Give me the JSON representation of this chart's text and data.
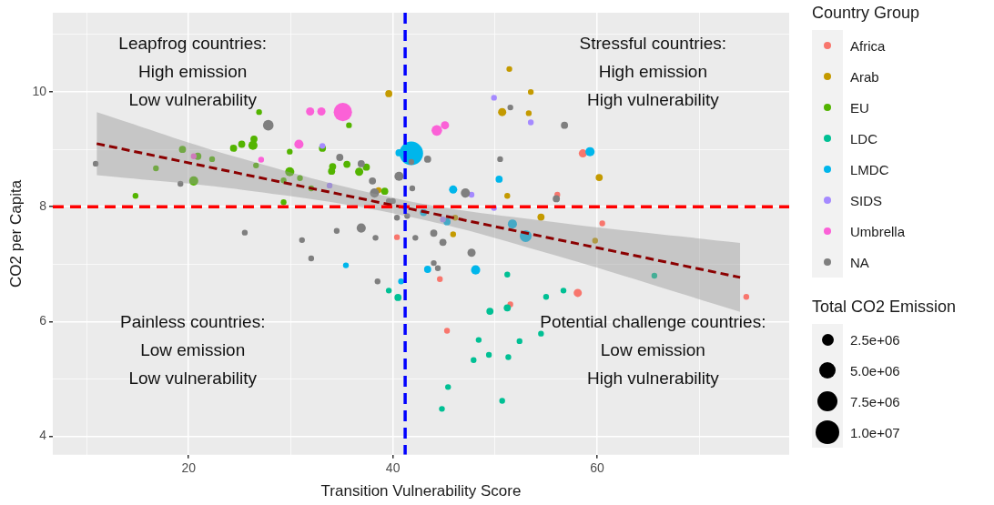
{
  "chart_data": {
    "type": "bubble",
    "xlabel": "Transition Vulnerability Score",
    "ylabel": "CO2 per Capita",
    "legend_title": "Country Group",
    "legend": "right",
    "grid": true,
    "xlim": [
      6.7,
      78.8
    ],
    "ylim": [
      3.68,
      11.38
    ],
    "xticks": [
      {
        "value": 10,
        "label": null
      },
      20,
      {
        "value": 30,
        "label": null
      },
      40,
      {
        "value": 50,
        "label": null
      },
      60,
      {
        "value": 70,
        "label": null
      }
    ],
    "yticks": [
      4,
      {
        "value": 5,
        "label": null
      },
      6,
      {
        "value": 7,
        "label": null
      },
      8,
      {
        "value": 9,
        "label": null
      },
      10,
      {
        "value": 11,
        "label": null
      }
    ],
    "size_legend": [
      {
        "value": 2500000,
        "label": "2.5e+06"
      },
      {
        "value": 5000000,
        "label": "5.0e+06"
      },
      {
        "value": 7500000,
        "label": "7.5e+06"
      },
      {
        "value": 10000000,
        "label": "1.0e+07"
      }
    ],
    "clabel": "Total CO2 Emission",
    "series": [
      {
        "type": "line",
        "color": "#8b0000",
        "line_style": "dashed",
        "x": [
          11,
          25,
          41,
          55,
          74
        ],
        "values": [
          9.1,
          8.58,
          7.99,
          7.47,
          6.77
        ],
        "lower": [
          8.55,
          8.3,
          7.85,
          7.2,
          6.17
        ],
        "upper": [
          9.65,
          8.85,
          8.12,
          7.75,
          7.37
        ]
      },
      {
        "name": "Africa",
        "color": "#f8766d",
        "x": [
          40.4,
          44.6,
          45.3,
          51.5,
          58.1,
          58.6,
          56.1,
          60.5,
          74.6
        ],
        "values": [
          7.47,
          6.74,
          5.84,
          6.3,
          6.5,
          8.93,
          8.21,
          7.71,
          6.43
        ],
        "sizes": [
          600000,
          600000,
          600000,
          600000,
          1200000,
          1200000,
          600000,
          600000,
          600000
        ]
      },
      {
        "name": "Arab",
        "color": "#c49a00",
        "x": [
          39.6,
          51.4,
          53.5,
          53.3,
          50.7,
          51.2,
          60.2,
          54.5,
          45.9,
          38.6,
          46.1,
          59.8
        ],
        "values": [
          9.97,
          10.4,
          10,
          9.63,
          9.65,
          8.19,
          8.51,
          7.82,
          7.52,
          8.29,
          7.81,
          7.41
        ],
        "sizes": [
          900000,
          600000,
          600000,
          600000,
          1200000,
          600000,
          900000,
          900000,
          600000,
          600000,
          600000,
          600000
        ]
      },
      {
        "name": "EU",
        "color": "#53b400",
        "x": [
          26.9,
          26.4,
          26.3,
          25.2,
          24.4,
          19.4,
          20.9,
          22.3,
          16.8,
          20.5,
          14.8,
          26.6,
          29.9,
          29.3,
          29.9,
          29.3,
          35.7,
          34.1,
          34,
          35.5,
          36.7,
          37.4,
          39.2,
          33.1,
          32,
          30.9
        ],
        "values": [
          9.65,
          9.18,
          9.07,
          9.09,
          9.02,
          9,
          8.88,
          8.83,
          8.67,
          8.45,
          8.19,
          8.72,
          8.61,
          8.46,
          8.96,
          8.08,
          9.42,
          8.7,
          8.62,
          8.74,
          8.61,
          8.69,
          8.27,
          9.02,
          8.32,
          8.5
        ],
        "sizes": [
          600000,
          900000,
          1500000,
          900000,
          900000,
          900000,
          900000,
          600000,
          600000,
          1500000,
          600000,
          600000,
          1500000,
          600000,
          600000,
          600000,
          600000,
          900000,
          900000,
          900000,
          1200000,
          900000,
          900000,
          900000,
          600000,
          600000
        ]
      },
      {
        "name": "LDC",
        "color": "#00c094",
        "x": [
          39.6,
          40.5,
          51.2,
          49.5,
          51.2,
          48.4,
          49.4,
          47.9,
          51.3,
          52.4,
          54.5,
          45.4,
          44.8,
          50.7,
          55,
          56.7,
          65.6
        ],
        "values": [
          6.54,
          6.42,
          6.82,
          6.18,
          6.24,
          5.68,
          5.42,
          5.33,
          5.38,
          5.66,
          5.79,
          4.86,
          4.48,
          4.62,
          6.43,
          6.54,
          6.8
        ],
        "sizes": [
          600000,
          900000,
          600000,
          900000,
          900000,
          600000,
          600000,
          600000,
          600000,
          600000,
          600000,
          600000,
          600000,
          600000,
          600000,
          600000,
          600000
        ]
      },
      {
        "name": "LMDC",
        "color": "#00b6eb",
        "x": [
          35.4,
          40.8,
          43.4,
          48.1,
          53,
          41.8,
          40.6,
          45.9,
          50.4,
          43,
          45.3,
          51.7,
          59.3
        ],
        "values": [
          6.98,
          6.7,
          6.91,
          6.9,
          7.49,
          8.93,
          8.94,
          8.3,
          8.48,
          7.9,
          7.74,
          7.7,
          8.96
        ],
        "sizes": [
          600000,
          600000,
          900000,
          1500000,
          2500000,
          10000000,
          900000,
          1200000,
          900000,
          900000,
          900000,
          1500000,
          1500000
        ]
      },
      {
        "name": "SIDS",
        "color": "#a58aff",
        "x": [
          49.9,
          53.5,
          47.7,
          49.9,
          44.9,
          33.1,
          33.8
        ],
        "values": [
          9.9,
          9.47,
          8.21,
          7.98,
          7.78,
          9.06,
          8.37
        ],
        "sizes": [
          600000,
          600000,
          600000,
          600000,
          600000,
          600000,
          600000
        ]
      },
      {
        "name": "Umbrella",
        "color": "#fb61d7",
        "x": [
          31.9,
          33,
          35.1,
          44.3,
          45.1,
          30.8,
          20.5,
          27.1
        ],
        "values": [
          9.66,
          9.66,
          9.65,
          9.33,
          9.42,
          9.09,
          8.88,
          8.82
        ],
        "sizes": [
          1200000,
          1200000,
          6000000,
          2000000,
          1200000,
          1500000,
          600000,
          600000
        ]
      },
      {
        "name": "NA",
        "color": "#7f7f7f",
        "x": [
          10.9,
          19.2,
          27.8,
          25.5,
          34.8,
          36.9,
          38,
          40.6,
          38.2,
          41.9,
          43.4,
          41.8,
          39.6,
          40,
          40.4,
          41.4,
          36.9,
          34.5,
          47.1,
          50.5,
          51.5,
          31.1,
          32,
          38.3,
          42.2,
          44,
          44.9,
          47.7,
          44,
          44.4,
          38.5,
          56.8,
          56
        ],
        "values": [
          8.75,
          8.4,
          9.42,
          7.55,
          8.86,
          8.75,
          8.45,
          8.53,
          8.24,
          8.32,
          8.83,
          8.78,
          8.1,
          8.1,
          7.81,
          7.84,
          7.63,
          7.58,
          8.24,
          8.83,
          9.73,
          7.42,
          7.1,
          7.46,
          7.46,
          7.54,
          7.38,
          7.2,
          7.02,
          6.93,
          6.7,
          9.42,
          8.14
        ],
        "sizes": [
          600000,
          600000,
          2000000,
          600000,
          900000,
          900000,
          900000,
          1500000,
          1500000,
          600000,
          900000,
          600000,
          600000,
          600000,
          600000,
          600000,
          1500000,
          600000,
          1500000,
          600000,
          600000,
          600000,
          600000,
          600000,
          600000,
          900000,
          900000,
          1200000,
          600000,
          600000,
          600000,
          900000,
          900000
        ]
      }
    ],
    "ref_lines": [
      {
        "axis": "y",
        "value": 8,
        "color": "#ff0000",
        "line_style": "dashed"
      },
      {
        "axis": "x",
        "value": 41.2,
        "color": "#0000ff",
        "line_style": "dashed"
      }
    ],
    "annotations": [
      "Leapfrog countries:\nHigh emission\nLow vulnerability",
      "Stressful countries:\nHigh emission\nHigh vulnerability",
      "Painless countries:\nLow emission\nLow vulnerability",
      "Potential challenge countries:\nLow emission\nHigh vulnerability"
    ]
  }
}
